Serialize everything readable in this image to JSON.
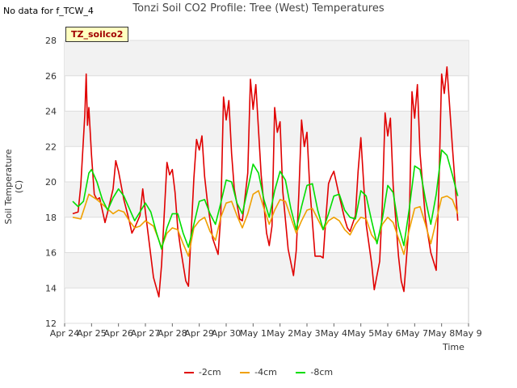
{
  "nodata_text": "No data for f_TCW_4",
  "badge": "TZ_soilco2",
  "chart_data": {
    "type": "line",
    "title": "Tonzi Soil CO2 Profile: Tree (West) Temperatures",
    "xlabel": "Time",
    "ylabel": "Soil Temperature (C)",
    "ylim": [
      12,
      28
    ],
    "yticks": [
      12,
      14,
      16,
      18,
      20,
      22,
      24,
      26,
      28
    ],
    "xlim_days": [
      0,
      15
    ],
    "xtick_labels": [
      "Apr 24",
      "Apr 25",
      "Apr 26",
      "Apr 27",
      "Apr 28",
      "Apr 29",
      "Apr 30",
      "May 1",
      "May 2",
      "May 3",
      "May 4",
      "May 5",
      "May 6",
      "May 7",
      "May 8",
      "May 9"
    ],
    "legend_position": "bottom-center",
    "grid": true,
    "series": [
      {
        "name": "-2cm",
        "color": "#e00000",
        "x": [
          0.3,
          0.5,
          0.6,
          0.75,
          0.8,
          0.85,
          0.9,
          1.0,
          1.1,
          1.2,
          1.3,
          1.5,
          1.6,
          1.8,
          1.9,
          2.0,
          2.2,
          2.4,
          2.5,
          2.6,
          2.8,
          2.9,
          3.0,
          3.3,
          3.5,
          3.6,
          3.8,
          3.9,
          4.0,
          4.1,
          4.2,
          4.3,
          4.5,
          4.6,
          4.8,
          4.9,
          5.0,
          5.1,
          5.2,
          5.3,
          5.5,
          5.7,
          5.8,
          5.9,
          6.0,
          6.1,
          6.2,
          6.3,
          6.5,
          6.6,
          6.8,
          6.9,
          7.0,
          7.1,
          7.3,
          7.5,
          7.6,
          7.7,
          7.8,
          7.9,
          8.0,
          8.1,
          8.3,
          8.5,
          8.6,
          8.7,
          8.8,
          8.9,
          9.0,
          9.1,
          9.3,
          9.5,
          9.6,
          9.7,
          9.8,
          9.9,
          10.0,
          10.2,
          10.4,
          10.5,
          10.6,
          10.8,
          10.9,
          11.0,
          11.2,
          11.4,
          11.5,
          11.7,
          11.8,
          11.9,
          12.0,
          12.1,
          12.2,
          12.4,
          12.5,
          12.6,
          12.8,
          12.9,
          13.0,
          13.1,
          13.2,
          13.4,
          13.6,
          13.8,
          13.9,
          14.0,
          14.1,
          14.2,
          14.4,
          14.6
        ],
        "y": [
          18.2,
          18.3,
          19.8,
          23.8,
          26.1,
          23.2,
          24.2,
          21.5,
          19.3,
          19.0,
          19.1,
          17.7,
          18.3,
          19.6,
          21.2,
          20.6,
          19.0,
          17.8,
          17.1,
          17.4,
          18.1,
          19.6,
          18.3,
          14.6,
          13.5,
          15.3,
          21.1,
          20.4,
          20.7,
          19.4,
          17.4,
          16.3,
          14.4,
          14.1,
          20.2,
          22.4,
          21.8,
          22.6,
          20.3,
          18.9,
          16.8,
          15.9,
          18.1,
          24.8,
          23.5,
          24.6,
          21.6,
          19.6,
          17.9,
          17.8,
          20.5,
          25.8,
          24.1,
          25.5,
          20.4,
          17.1,
          16.4,
          17.5,
          24.2,
          22.8,
          23.4,
          19.5,
          16.2,
          14.7,
          16.1,
          19.4,
          23.5,
          22.0,
          22.8,
          19.8,
          15.8,
          15.8,
          15.7,
          17.9,
          19.9,
          20.3,
          20.6,
          19.2,
          17.9,
          17.4,
          17.2,
          18.1,
          20.6,
          22.5,
          17.6,
          15.4,
          13.9,
          15.5,
          18.7,
          23.9,
          22.6,
          23.6,
          19.8,
          15.8,
          14.4,
          13.8,
          17.8,
          25.1,
          23.6,
          25.5,
          21.6,
          17.9,
          16.0,
          15.0,
          19.7,
          26.1,
          25.0,
          26.5,
          22.0,
          17.8
        ]
      },
      {
        "name": "-4cm",
        "color": "#f0a000",
        "x": [
          0.3,
          0.6,
          0.9,
          1.2,
          1.5,
          1.8,
          2.0,
          2.2,
          2.4,
          2.6,
          2.8,
          3.0,
          3.3,
          3.6,
          3.8,
          4.0,
          4.2,
          4.4,
          4.6,
          4.8,
          5.0,
          5.2,
          5.4,
          5.6,
          5.8,
          6.0,
          6.2,
          6.4,
          6.6,
          6.8,
          7.0,
          7.2,
          7.4,
          7.6,
          7.8,
          8.0,
          8.2,
          8.4,
          8.6,
          8.8,
          9.0,
          9.2,
          9.4,
          9.6,
          9.8,
          10.0,
          10.2,
          10.4,
          10.6,
          10.8,
          11.0,
          11.2,
          11.4,
          11.6,
          11.8,
          12.0,
          12.2,
          12.4,
          12.6,
          12.8,
          13.0,
          13.2,
          13.4,
          13.6,
          13.8,
          14.0,
          14.2,
          14.4,
          14.6
        ],
        "y": [
          18.0,
          17.9,
          19.3,
          19.0,
          18.6,
          18.2,
          18.4,
          18.3,
          17.8,
          17.4,
          17.5,
          17.8,
          17.5,
          16.3,
          17.1,
          17.4,
          17.3,
          16.5,
          15.8,
          17.4,
          17.8,
          18.0,
          17.2,
          16.7,
          18.0,
          18.8,
          18.9,
          18.1,
          17.4,
          18.2,
          19.3,
          19.5,
          18.5,
          17.6,
          18.4,
          19.0,
          18.9,
          18.0,
          17.1,
          17.8,
          18.4,
          18.5,
          17.9,
          17.3,
          17.8,
          18.0,
          17.8,
          17.3,
          17.0,
          17.6,
          18.0,
          17.9,
          17.0,
          16.6,
          17.6,
          18.0,
          17.7,
          16.8,
          15.9,
          17.3,
          18.5,
          18.6,
          17.6,
          16.5,
          17.8,
          19.1,
          19.2,
          19.0,
          18.2
        ]
      },
      {
        "name": "-8cm",
        "color": "#00dd00",
        "x": [
          0.3,
          0.5,
          0.7,
          0.9,
          1.0,
          1.2,
          1.4,
          1.6,
          1.8,
          2.0,
          2.2,
          2.4,
          2.6,
          2.8,
          3.0,
          3.2,
          3.4,
          3.6,
          3.8,
          4.0,
          4.2,
          4.4,
          4.6,
          4.8,
          5.0,
          5.2,
          5.4,
          5.6,
          5.8,
          6.0,
          6.2,
          6.4,
          6.6,
          6.8,
          7.0,
          7.2,
          7.4,
          7.6,
          7.8,
          8.0,
          8.2,
          8.4,
          8.6,
          8.8,
          9.0,
          9.2,
          9.4,
          9.6,
          9.8,
          10.0,
          10.2,
          10.4,
          10.6,
          10.8,
          11.0,
          11.2,
          11.4,
          11.6,
          11.8,
          12.0,
          12.2,
          12.4,
          12.6,
          12.8,
          13.0,
          13.2,
          13.4,
          13.6,
          13.8,
          14.0,
          14.2,
          14.4,
          14.6
        ],
        "y": [
          18.9,
          18.6,
          18.9,
          20.5,
          20.7,
          20.0,
          19.0,
          18.4,
          19.1,
          19.6,
          19.2,
          18.5,
          17.8,
          18.3,
          18.8,
          18.3,
          17.2,
          16.2,
          17.4,
          18.2,
          18.2,
          17.1,
          16.3,
          17.6,
          18.9,
          19.0,
          18.2,
          17.6,
          18.8,
          20.1,
          20.0,
          18.8,
          18.2,
          19.6,
          21.0,
          20.5,
          19.0,
          18.0,
          19.5,
          20.6,
          20.1,
          18.5,
          17.3,
          18.6,
          19.8,
          19.9,
          18.4,
          17.3,
          18.2,
          19.2,
          19.3,
          18.4,
          18.0,
          17.9,
          19.5,
          19.2,
          17.8,
          16.5,
          17.9,
          19.8,
          19.4,
          17.5,
          16.4,
          18.5,
          20.9,
          20.7,
          19.0,
          17.6,
          19.3,
          21.8,
          21.5,
          20.4,
          19.2
        ]
      }
    ]
  }
}
